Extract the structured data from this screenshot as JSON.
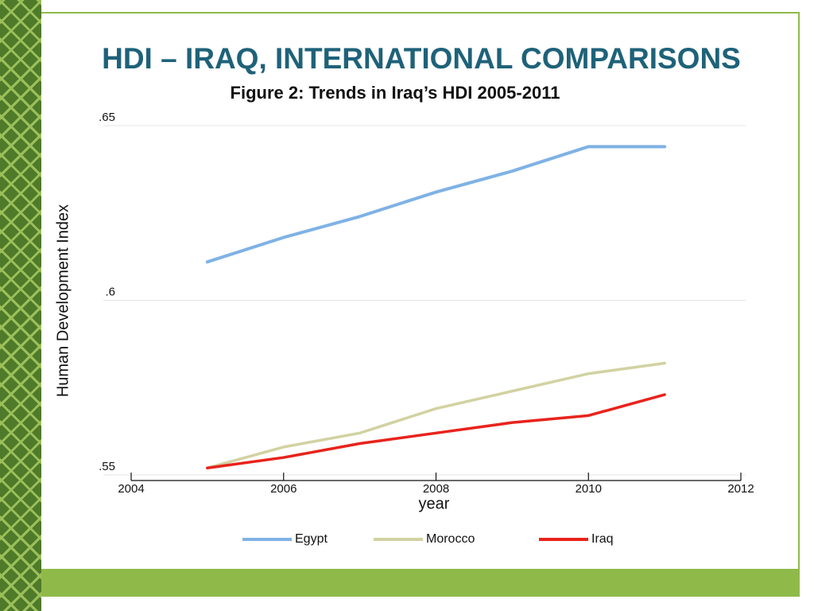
{
  "slide_title": "HDI – IRAQ, INTERNATIONAL COMPARISONS",
  "chart_data": {
    "type": "line",
    "title": "Figure 2: Trends in Iraq’s HDI 2005-2011",
    "x_label": "year",
    "y_label": "Human Development Index",
    "x": [
      2005,
      2006,
      2007,
      2008,
      2009,
      2010,
      2011
    ],
    "series": [
      {
        "name": "Egypt",
        "color": "#7fb2e5",
        "values": [
          0.611,
          0.618,
          0.624,
          0.631,
          0.637,
          0.644,
          0.644
        ]
      },
      {
        "name": "Morocco",
        "color": "#d2d2a2",
        "values": [
          0.552,
          0.558,
          0.562,
          0.569,
          0.574,
          0.579,
          0.582
        ]
      },
      {
        "name": "Iraq",
        "color": "#e8231c",
        "values": [
          0.552,
          0.555,
          0.559,
          0.562,
          0.565,
          0.567,
          0.573
        ]
      }
    ],
    "xlim": [
      2004,
      2012
    ],
    "xticks": [
      2004,
      2006,
      2008,
      2010,
      2012
    ],
    "ylim": [
      0.55,
      0.65
    ],
    "yticks": [
      {
        "value": 0.55,
        "label": ".55"
      },
      {
        "value": 0.6,
        "label": ".6"
      },
      {
        "value": 0.65,
        "label": ".65"
      }
    ],
    "grid": true,
    "legend": "bottom"
  }
}
